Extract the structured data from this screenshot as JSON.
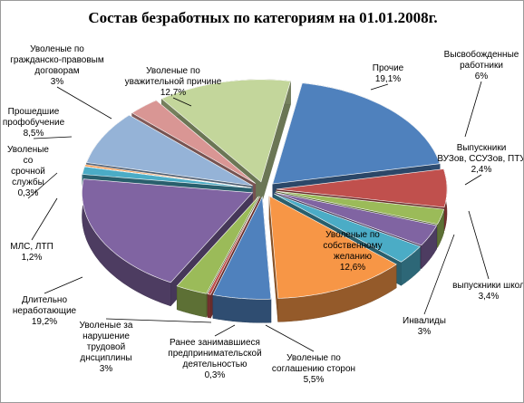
{
  "chart_data": {
    "type": "pie",
    "title": "Состав безработных по категориям на 01.01.2008г.",
    "slices": [
      {
        "label": "Прочие",
        "value": 19.1,
        "value_label": "19,1%",
        "color": "#4F81BD"
      },
      {
        "label": "Высвобожденные работники",
        "value": 6,
        "value_label": "6%",
        "color": "#C0504D"
      },
      {
        "label": "Выпускники ВУЗов, ССУЗов, ПТУ",
        "value": 2.4,
        "value_label": "2,4%",
        "color": "#9BBB59"
      },
      {
        "label": "Выпускники школ",
        "value": 3.4,
        "value_label": "3,4%",
        "color": "#8064A2"
      },
      {
        "label": "Инвалиды",
        "value": 3,
        "value_label": "3%",
        "color": "#4BACC6"
      },
      {
        "label": "Уволеные по собственному желанию",
        "value": 12.6,
        "value_label": "12,6%",
        "color": "#F79646"
      },
      {
        "label": "Уволеные по соглашению сторон",
        "value": 5.5,
        "value_label": "5,5%",
        "color": "#4F81BD"
      },
      {
        "label": "Ранее занимавшиеся предпринимательской деятельностью",
        "value": 0.3,
        "value_label": "0,3%",
        "color": "#C0504D"
      },
      {
        "label": "Уволеные за нарушение трудовой днсциплины",
        "value": 3,
        "value_label": "3%",
        "color": "#9BBB59"
      },
      {
        "label": "Длительно неработающие",
        "value": 19.2,
        "value_label": "19,2%",
        "color": "#8064A2"
      },
      {
        "label": "МЛС, ЛТП",
        "value": 1.2,
        "value_label": "1,2%",
        "color": "#4BACC6"
      },
      {
        "label": "Уволеные со срочной службы",
        "value": 0.3,
        "value_label": "0,3%",
        "color": "#F79646"
      },
      {
        "label": "Прошедшие профобучение",
        "value": 8.5,
        "value_label": "8,5%",
        "color": "#95B3D7"
      },
      {
        "label": "Уволеные по гражданско-правовым договорам",
        "value": 3,
        "value_label": "3%",
        "color": "#D99694"
      },
      {
        "label": "Уволеные по уважительной причине",
        "value": 12.7,
        "value_label": "12,7%",
        "color": "#C3D69B"
      }
    ],
    "legend": "none"
  }
}
